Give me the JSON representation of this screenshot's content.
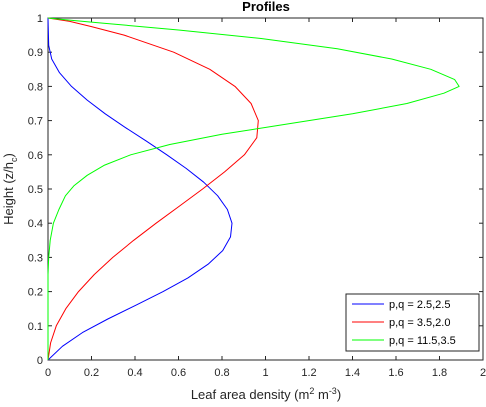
{
  "chart_data": {
    "type": "line",
    "title": "Profiles",
    "xlabel_main": "Leaf area density (m",
    "xlabel_sup1": "2",
    "xlabel_mid": " m",
    "xlabel_sup2": "-3",
    "xlabel_end": ")",
    "ylabel_main": "Height (z/h",
    "ylabel_sub": "c",
    "ylabel_end": ")",
    "xlim": [
      0,
      2
    ],
    "ylim": [
      0,
      1
    ],
    "xticks": [
      "0",
      "0.2",
      "0.4",
      "0.6",
      "0.8",
      "1",
      "1.2",
      "1.4",
      "1.6",
      "1.8",
      "2"
    ],
    "yticks": [
      "0",
      "0.1",
      "0.2",
      "0.3",
      "0.4",
      "0.5",
      "0.6",
      "0.7",
      "0.8",
      "0.9",
      "1"
    ],
    "grid": false,
    "legend_position": "bottom-right",
    "series": [
      {
        "name": "p,q = 2.5,2.5",
        "color": "#0000ff",
        "x": [
          0.0,
          0.066,
          0.158,
          0.275,
          0.403,
          0.529,
          0.643,
          0.736,
          0.803,
          0.839,
          0.846,
          0.825,
          0.78,
          0.716,
          0.636,
          0.546,
          0.452,
          0.355,
          0.263,
          0.18,
          0.108,
          0.053,
          0.017,
          0.003,
          0.0
        ],
        "y": [
          0.0,
          0.04,
          0.08,
          0.12,
          0.16,
          0.2,
          0.24,
          0.28,
          0.32,
          0.36,
          0.4,
          0.44,
          0.48,
          0.52,
          0.56,
          0.6,
          0.64,
          0.68,
          0.72,
          0.76,
          0.8,
          0.84,
          0.88,
          0.92,
          1.0
        ]
      },
      {
        "name": "p,q = 3.5,2.0",
        "color": "#ff0000",
        "x": [
          0.0,
          0.012,
          0.038,
          0.082,
          0.14,
          0.213,
          0.298,
          0.394,
          0.497,
          0.604,
          0.711,
          0.812,
          0.903,
          0.96,
          0.967,
          0.934,
          0.86,
          0.744,
          0.578,
          0.35,
          0.2,
          0.1,
          0.0
        ],
        "y": [
          0.0,
          0.05,
          0.1,
          0.15,
          0.2,
          0.25,
          0.3,
          0.35,
          0.4,
          0.45,
          0.5,
          0.55,
          0.6,
          0.65,
          0.7,
          0.75,
          0.8,
          0.85,
          0.9,
          0.95,
          0.975,
          0.99,
          1.0
        ]
      },
      {
        "name": "p,q = 11.5,3.5",
        "color": "#00ff00",
        "x": [
          0.0,
          0.0,
          0.003,
          0.01,
          0.025,
          0.05,
          0.08,
          0.12,
          0.18,
          0.26,
          0.38,
          0.56,
          0.8,
          1.1,
          1.4,
          1.65,
          1.82,
          1.89,
          1.87,
          1.76,
          1.58,
          1.33,
          0.98,
          0.6,
          0.25,
          0.08,
          0.0
        ],
        "y": [
          0.0,
          0.25,
          0.3,
          0.35,
          0.4,
          0.44,
          0.48,
          0.51,
          0.54,
          0.57,
          0.6,
          0.63,
          0.66,
          0.69,
          0.72,
          0.75,
          0.78,
          0.8,
          0.82,
          0.85,
          0.88,
          0.91,
          0.94,
          0.965,
          0.985,
          0.995,
          1.0
        ]
      }
    ]
  }
}
